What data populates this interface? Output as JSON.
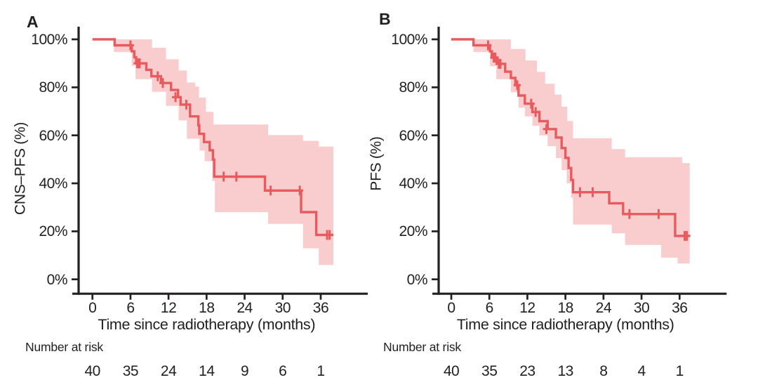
{
  "panels": [
    {
      "label": "A",
      "risk_label": "Number at risk"
    },
    {
      "label": "B",
      "risk_label": "Number at risk"
    }
  ],
  "colors": {
    "curve": "#E75B5E",
    "band": "#F9CDCD",
    "axis": "#232020",
    "text": "#232020"
  },
  "chart_data": [
    {
      "type": "line",
      "subtype": "kaplan-meier-step",
      "title": "",
      "ylabel": "CNS–PFS (%)",
      "xlabel": "Time since radiotherapy (months)",
      "y_tick_labels": [
        "100%",
        "80%",
        "60%",
        "40%",
        "20%",
        "0%"
      ],
      "y_tick_values": [
        100,
        80,
        60,
        40,
        20,
        0
      ],
      "x_tick_labels": [
        "0",
        "6",
        "12",
        "18",
        "24",
        "30",
        "36"
      ],
      "x_tick_values": [
        0,
        6,
        12,
        18,
        24,
        30,
        36
      ],
      "ylim": [
        0,
        100
      ],
      "xlim": [
        0,
        38
      ],
      "grid": false,
      "legend": false,
      "end_time": 38.0,
      "steps": [
        [
          0,
          100
        ],
        [
          3.5,
          97.5
        ],
        [
          6.2,
          95
        ],
        [
          6.6,
          92.5
        ],
        [
          6.9,
          90
        ],
        [
          8.5,
          87.3
        ],
        [
          9.3,
          84.6
        ],
        [
          10.8,
          81.8
        ],
        [
          12.4,
          78.9
        ],
        [
          13.5,
          75.9
        ],
        [
          13.9,
          72.8
        ],
        [
          15.4,
          67.9
        ],
        [
          16.7,
          64.2
        ],
        [
          16.85,
          60.6
        ],
        [
          17.6,
          57.2
        ],
        [
          18.5,
          53.8
        ],
        [
          19.0,
          49.9
        ],
        [
          19.2,
          42.8
        ],
        [
          27.2,
          37.0
        ],
        [
          32.9,
          28.0
        ],
        [
          35.3,
          18.5
        ]
      ],
      "censor_marks": [
        [
          6.0,
          97.5
        ],
        [
          7.05,
          90
        ],
        [
          7.25,
          90
        ],
        [
          7.45,
          90
        ],
        [
          10.3,
          84.6
        ],
        [
          11.1,
          81.8
        ],
        [
          13.1,
          75.9
        ],
        [
          14.8,
          72.8
        ],
        [
          20.7,
          42.8
        ],
        [
          22.7,
          42.8
        ],
        [
          28.1,
          37.0
        ],
        [
          32.7,
          37.0
        ],
        [
          37.0,
          18.5
        ],
        [
          37.4,
          18.5
        ]
      ],
      "ci_upper": [
        [
          3.4,
          100
        ],
        [
          9.4,
          96.5
        ],
        [
          11.6,
          91.7
        ],
        [
          13.6,
          87.0
        ],
        [
          14.9,
          82.0
        ],
        [
          16.2,
          80.3
        ],
        [
          16.8,
          75.7
        ],
        [
          17.9,
          69.8
        ],
        [
          19.1,
          64.5
        ],
        [
          27.7,
          60.1
        ],
        [
          33.2,
          57.7
        ],
        [
          35.7,
          55.3
        ]
      ],
      "ci_lower": [
        [
          3.4,
          94.7
        ],
        [
          6.2,
          89.0
        ],
        [
          6.8,
          83.4
        ],
        [
          9.4,
          78.1
        ],
        [
          11.6,
          72.3
        ],
        [
          13.6,
          66.2
        ],
        [
          14.9,
          58.6
        ],
        [
          16.9,
          53.6
        ],
        [
          17.7,
          49.2
        ],
        [
          18.9,
          41.0
        ],
        [
          19.3,
          28.0
        ],
        [
          27.7,
          23.1
        ],
        [
          33.2,
          12.9
        ],
        [
          35.7,
          6.0
        ]
      ],
      "number_at_risk_label": "Number at risk",
      "number_at_risk": [
        "40",
        "35",
        "24",
        "14",
        "9",
        "6",
        "1"
      ]
    },
    {
      "type": "line",
      "subtype": "kaplan-meier-step",
      "title": "",
      "ylabel": "PFS (%)",
      "xlabel": "Time since radiotherapy (months)",
      "y_tick_labels": [
        "100%",
        "80%",
        "60%",
        "40%",
        "20%",
        "0%"
      ],
      "y_tick_values": [
        100,
        80,
        60,
        40,
        20,
        0
      ],
      "x_tick_labels": [
        "0",
        "6",
        "12",
        "18",
        "24",
        "30",
        "36"
      ],
      "x_tick_values": [
        0,
        6,
        12,
        18,
        24,
        30,
        36
      ],
      "ylim": [
        0,
        100
      ],
      "xlim": [
        0,
        38
      ],
      "grid": false,
      "legend": false,
      "end_time": 37.6,
      "steps": [
        [
          0,
          100
        ],
        [
          3.5,
          97.5
        ],
        [
          6.1,
          95
        ],
        [
          6.4,
          92.4
        ],
        [
          7.2,
          89.8
        ],
        [
          8.5,
          86.5
        ],
        [
          9.4,
          83.9
        ],
        [
          10.1,
          80.9
        ],
        [
          10.6,
          76.6
        ],
        [
          11.6,
          73.2
        ],
        [
          12.8,
          69.7
        ],
        [
          13.9,
          65.9
        ],
        [
          15.2,
          62.6
        ],
        [
          16.5,
          59.1
        ],
        [
          17.4,
          54.7
        ],
        [
          18.0,
          50.6
        ],
        [
          18.5,
          46.4
        ],
        [
          18.9,
          41.4
        ],
        [
          19.2,
          36.3
        ],
        [
          24.9,
          31.7
        ],
        [
          27.1,
          27.2
        ],
        [
          35.3,
          18.1
        ]
      ],
      "censor_marks": [
        [
          5.8,
          97.5
        ],
        [
          6.7,
          92.4
        ],
        [
          6.95,
          92.4
        ],
        [
          7.5,
          89.8
        ],
        [
          7.75,
          89.8
        ],
        [
          10.4,
          80.9
        ],
        [
          12.6,
          73.2
        ],
        [
          13.3,
          69.7
        ],
        [
          15.0,
          62.6
        ],
        [
          20.3,
          36.3
        ],
        [
          22.3,
          36.3
        ],
        [
          28.1,
          27.2
        ],
        [
          32.7,
          27.2
        ],
        [
          36.8,
          18.1
        ],
        [
          37.15,
          18.1
        ]
      ],
      "ci_upper": [
        [
          3.5,
          100
        ],
        [
          9.4,
          96.0
        ],
        [
          11.7,
          91.2
        ],
        [
          13.5,
          86.4
        ],
        [
          14.8,
          81.5
        ],
        [
          16.3,
          77.0
        ],
        [
          17.4,
          72.0
        ],
        [
          18.3,
          66.0
        ],
        [
          19.2,
          58.8
        ],
        [
          25.3,
          54.3
        ],
        [
          27.4,
          50.9
        ],
        [
          36.4,
          48.4
        ]
      ],
      "ci_lower": [
        [
          3.5,
          94.7
        ],
        [
          6.1,
          88.8
        ],
        [
          7.1,
          83.4
        ],
        [
          9.4,
          78.0
        ],
        [
          10.6,
          71.5
        ],
        [
          11.6,
          67.9
        ],
        [
          12.8,
          64.0
        ],
        [
          13.9,
          60.0
        ],
        [
          15.2,
          55.5
        ],
        [
          16.5,
          50.5
        ],
        [
          17.4,
          45.5
        ],
        [
          18.2,
          40.0
        ],
        [
          18.9,
          34.0
        ],
        [
          19.2,
          22.8
        ],
        [
          25.3,
          19.2
        ],
        [
          27.4,
          14.3
        ],
        [
          33.1,
          9.0
        ],
        [
          35.7,
          6.6
        ]
      ],
      "number_at_risk_label": "Number at risk",
      "number_at_risk": [
        "40",
        "35",
        "23",
        "13",
        "8",
        "4",
        "1"
      ]
    }
  ]
}
